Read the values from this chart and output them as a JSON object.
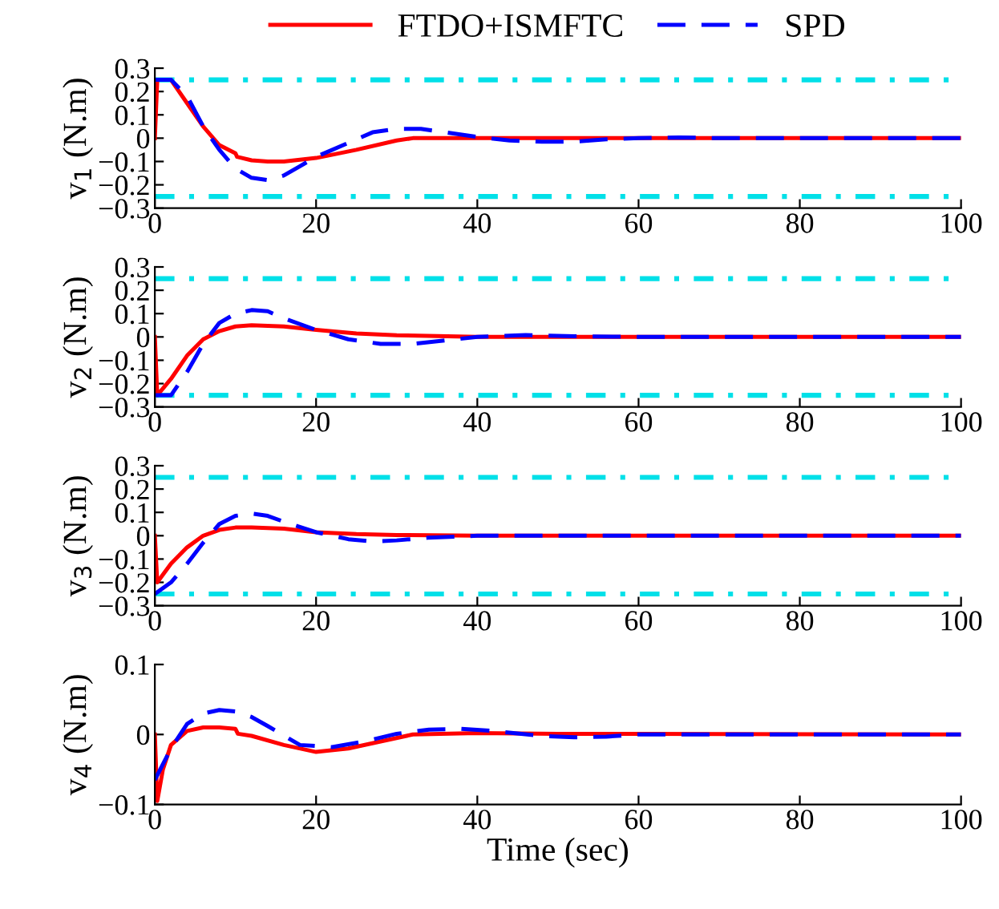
{
  "chart_data": [
    {
      "type": "line",
      "ylabel": "v$_{1}$ (N.m)",
      "xlim": [
        0,
        100
      ],
      "xticks": [
        0,
        20,
        40,
        60,
        80,
        100
      ],
      "ylim": [
        -0.3,
        0.3
      ],
      "yticks": [
        -0.3,
        -0.2,
        -0.1,
        0,
        0.1,
        0.2,
        0.3
      ],
      "legend": "top",
      "grid": false,
      "ref_lines": [
        {
          "axis": "y",
          "value": 0.25,
          "color": "#00e0e8",
          "line_style": "dashdot"
        },
        {
          "axis": "y",
          "value": -0.25,
          "color": "#00e0e8",
          "line_style": "dashdot"
        }
      ],
      "series": [
        {
          "name": "FTDO+ISMFTC",
          "color": "#ff0000",
          "line_style": "solid",
          "x": [
            0,
            0.3,
            2,
            4,
            6,
            8,
            10,
            10.2,
            12,
            14,
            16,
            20,
            25,
            30,
            32,
            40,
            100
          ],
          "values": [
            0,
            0.25,
            0.25,
            0.15,
            0.05,
            -0.03,
            -0.065,
            -0.08,
            -0.095,
            -0.1,
            -0.1,
            -0.085,
            -0.05,
            -0.01,
            0,
            0,
            0
          ]
        },
        {
          "name": "SPD",
          "color": "#0000ff",
          "line_style": "dashed",
          "x": [
            0,
            2,
            4,
            6,
            8,
            10,
            12,
            14,
            16,
            18,
            20,
            24,
            27,
            30,
            33,
            36,
            40,
            44,
            48,
            52,
            56,
            60,
            65,
            70,
            100
          ],
          "values": [
            0.25,
            0.25,
            0.18,
            0.05,
            -0.05,
            -0.13,
            -0.17,
            -0.18,
            -0.16,
            -0.12,
            -0.08,
            -0.02,
            0.025,
            0.04,
            0.04,
            0.025,
            0.005,
            -0.01,
            -0.015,
            -0.015,
            -0.005,
            0,
            0.003,
            0,
            0
          ]
        }
      ]
    },
    {
      "type": "line",
      "ylabel": "v$_{2}$ (N.m)",
      "xlim": [
        0,
        100
      ],
      "xticks": [
        0,
        20,
        40,
        60,
        80,
        100
      ],
      "ylim": [
        -0.3,
        0.3
      ],
      "yticks": [
        -0.3,
        -0.2,
        -0.1,
        0,
        0.1,
        0.2,
        0.3
      ],
      "grid": false,
      "ref_lines": [
        {
          "axis": "y",
          "value": 0.25,
          "color": "#00e0e8",
          "line_style": "dashdot"
        },
        {
          "axis": "y",
          "value": -0.25,
          "color": "#00e0e8",
          "line_style": "dashdot"
        }
      ],
      "series": [
        {
          "color": "#ff0000",
          "line_style": "solid",
          "x": [
            0,
            0.3,
            2,
            4,
            6,
            8,
            10,
            12,
            16,
            20,
            25,
            30,
            40,
            100
          ],
          "values": [
            0,
            -0.25,
            -0.18,
            -0.08,
            -0.01,
            0.025,
            0.045,
            0.05,
            0.045,
            0.03,
            0.015,
            0.007,
            0,
            0
          ]
        },
        {
          "color": "#0000ff",
          "line_style": "dashed",
          "x": [
            0,
            2,
            4,
            6,
            8,
            10,
            12,
            14,
            16,
            20,
            24,
            28,
            32,
            36,
            40,
            46,
            52,
            60,
            100
          ],
          "values": [
            -0.25,
            -0.25,
            -0.15,
            -0.03,
            0.06,
            0.1,
            0.115,
            0.11,
            0.08,
            0.03,
            -0.01,
            -0.03,
            -0.03,
            -0.015,
            0,
            0.008,
            0.003,
            0,
            0
          ]
        }
      ]
    },
    {
      "type": "line",
      "ylabel": "v$_{3}$ (N.m)",
      "xlim": [
        0,
        100
      ],
      "xticks": [
        0,
        20,
        40,
        60,
        80,
        100
      ],
      "ylim": [
        -0.3,
        0.3
      ],
      "yticks": [
        -0.3,
        -0.2,
        -0.1,
        0,
        0.1,
        0.2,
        0.3
      ],
      "grid": false,
      "ref_lines": [
        {
          "axis": "y",
          "value": 0.25,
          "color": "#00e0e8",
          "line_style": "dashdot"
        },
        {
          "axis": "y",
          "value": -0.25,
          "color": "#00e0e8",
          "line_style": "dashdot"
        }
      ],
      "series": [
        {
          "color": "#ff0000",
          "line_style": "solid",
          "x": [
            0,
            0.3,
            2,
            4,
            6,
            8,
            10,
            12,
            16,
            20,
            25,
            30,
            40,
            100
          ],
          "values": [
            0,
            -0.2,
            -0.12,
            -0.05,
            0,
            0.025,
            0.035,
            0.035,
            0.03,
            0.015,
            0.007,
            0.003,
            0,
            0
          ]
        },
        {
          "color": "#0000ff",
          "line_style": "dashed",
          "x": [
            0,
            2,
            4,
            6,
            8,
            10,
            12,
            14,
            16,
            20,
            24,
            27,
            30,
            34,
            40,
            50,
            100
          ],
          "values": [
            -0.25,
            -0.2,
            -0.12,
            -0.03,
            0.05,
            0.085,
            0.095,
            0.085,
            0.06,
            0.015,
            -0.015,
            -0.025,
            -0.02,
            -0.008,
            0,
            0,
            0
          ]
        }
      ]
    },
    {
      "type": "line",
      "ylabel": "v$_{4}$ (N.m)",
      "xlabel": "Time (sec)",
      "xlim": [
        0,
        100
      ],
      "xticks": [
        0,
        20,
        40,
        60,
        80,
        100
      ],
      "ylim": [
        -0.1,
        0.1
      ],
      "yticks": [
        -0.1,
        0,
        0.1
      ],
      "grid": false,
      "series": [
        {
          "color": "#ff0000",
          "line_style": "solid",
          "x": [
            0,
            0.3,
            1,
            2,
            4,
            6,
            8,
            10,
            10.3,
            12,
            16,
            20,
            24,
            28,
            32,
            40,
            50,
            60,
            100
          ],
          "values": [
            0,
            -0.095,
            -0.05,
            -0.015,
            0.005,
            0.01,
            0.01,
            0.008,
            0.001,
            -0.002,
            -0.015,
            -0.025,
            -0.02,
            -0.01,
            0,
            0.002,
            0.001,
            0.001,
            0
          ]
        },
        {
          "color": "#0000ff",
          "line_style": "dashed",
          "x": [
            0,
            2,
            4,
            6,
            8,
            10,
            12,
            14,
            18,
            22,
            26,
            30,
            34,
            38,
            42,
            48,
            52,
            56,
            60,
            100
          ],
          "values": [
            -0.065,
            -0.02,
            0.015,
            0.03,
            0.035,
            0.033,
            0.025,
            0.012,
            -0.015,
            -0.018,
            -0.01,
            0.001,
            0.007,
            0.008,
            0.005,
            -0.002,
            -0.004,
            -0.003,
            0,
            0
          ]
        }
      ]
    }
  ]
}
